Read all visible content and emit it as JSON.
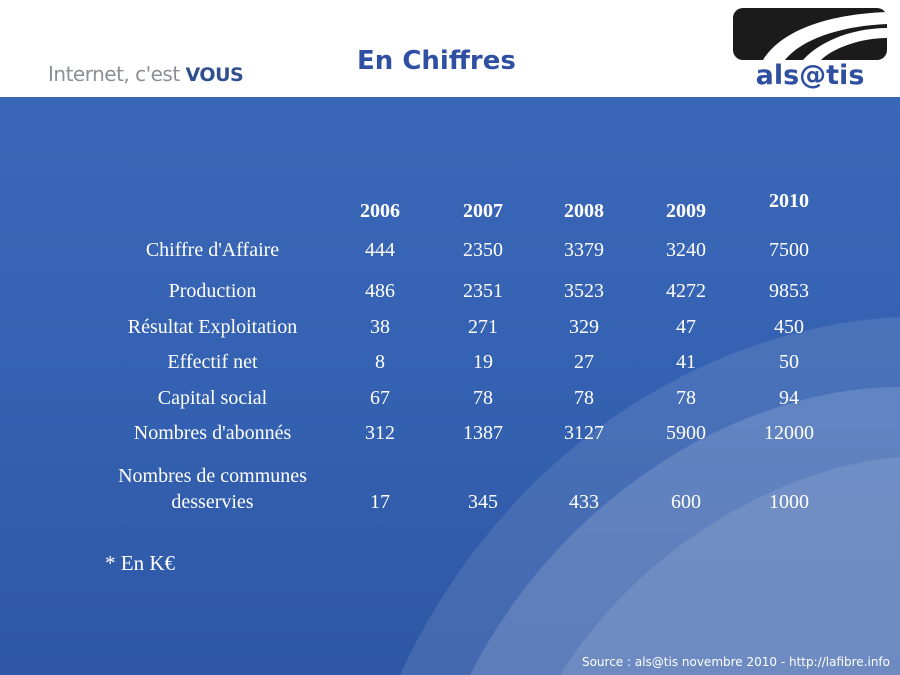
{
  "header": {
    "tagline_prefix": "Internet, c'est ",
    "tagline_emphasis": "VOUS",
    "title": "En Chiffres",
    "logo_text": "als@tis"
  },
  "table": {
    "years": [
      "2006",
      "2007",
      "2008",
      "2009",
      "2010"
    ],
    "rows": [
      {
        "label": "Chiffre d'Affaire",
        "values": [
          "444",
          "2350",
          "3379",
          "3240",
          "7500"
        ]
      },
      {
        "label": "Production",
        "values": [
          "486",
          "2351",
          "3523",
          "4272",
          "9853"
        ]
      },
      {
        "label": "Résultat Exploitation",
        "values": [
          "38",
          "271",
          "329",
          "47",
          "450"
        ]
      },
      {
        "label": "Effectif net",
        "values": [
          "8",
          "19",
          "27",
          "41",
          "50"
        ]
      },
      {
        "label": "Capital social",
        "values": [
          "67",
          "78",
          "78",
          "78",
          "94"
        ]
      },
      {
        "label": "Nombres d'abonnés",
        "values": [
          "312",
          "1387",
          "3127",
          "5900",
          "12000"
        ]
      },
      {
        "label_line1": "Nombres de communes",
        "label_line2": "desservies",
        "values": [
          "17",
          "345",
          "433",
          "600",
          "1000"
        ]
      }
    ]
  },
  "footnote": "* En K€",
  "source": "Source : als@tis novembre 2010 - http://lafibre.info",
  "colors": {
    "background_blue": "#3461b1",
    "title_blue": "#2f4fa3",
    "tagline_gray": "#8c8f96",
    "logo_dark": "#1b1b1b"
  }
}
